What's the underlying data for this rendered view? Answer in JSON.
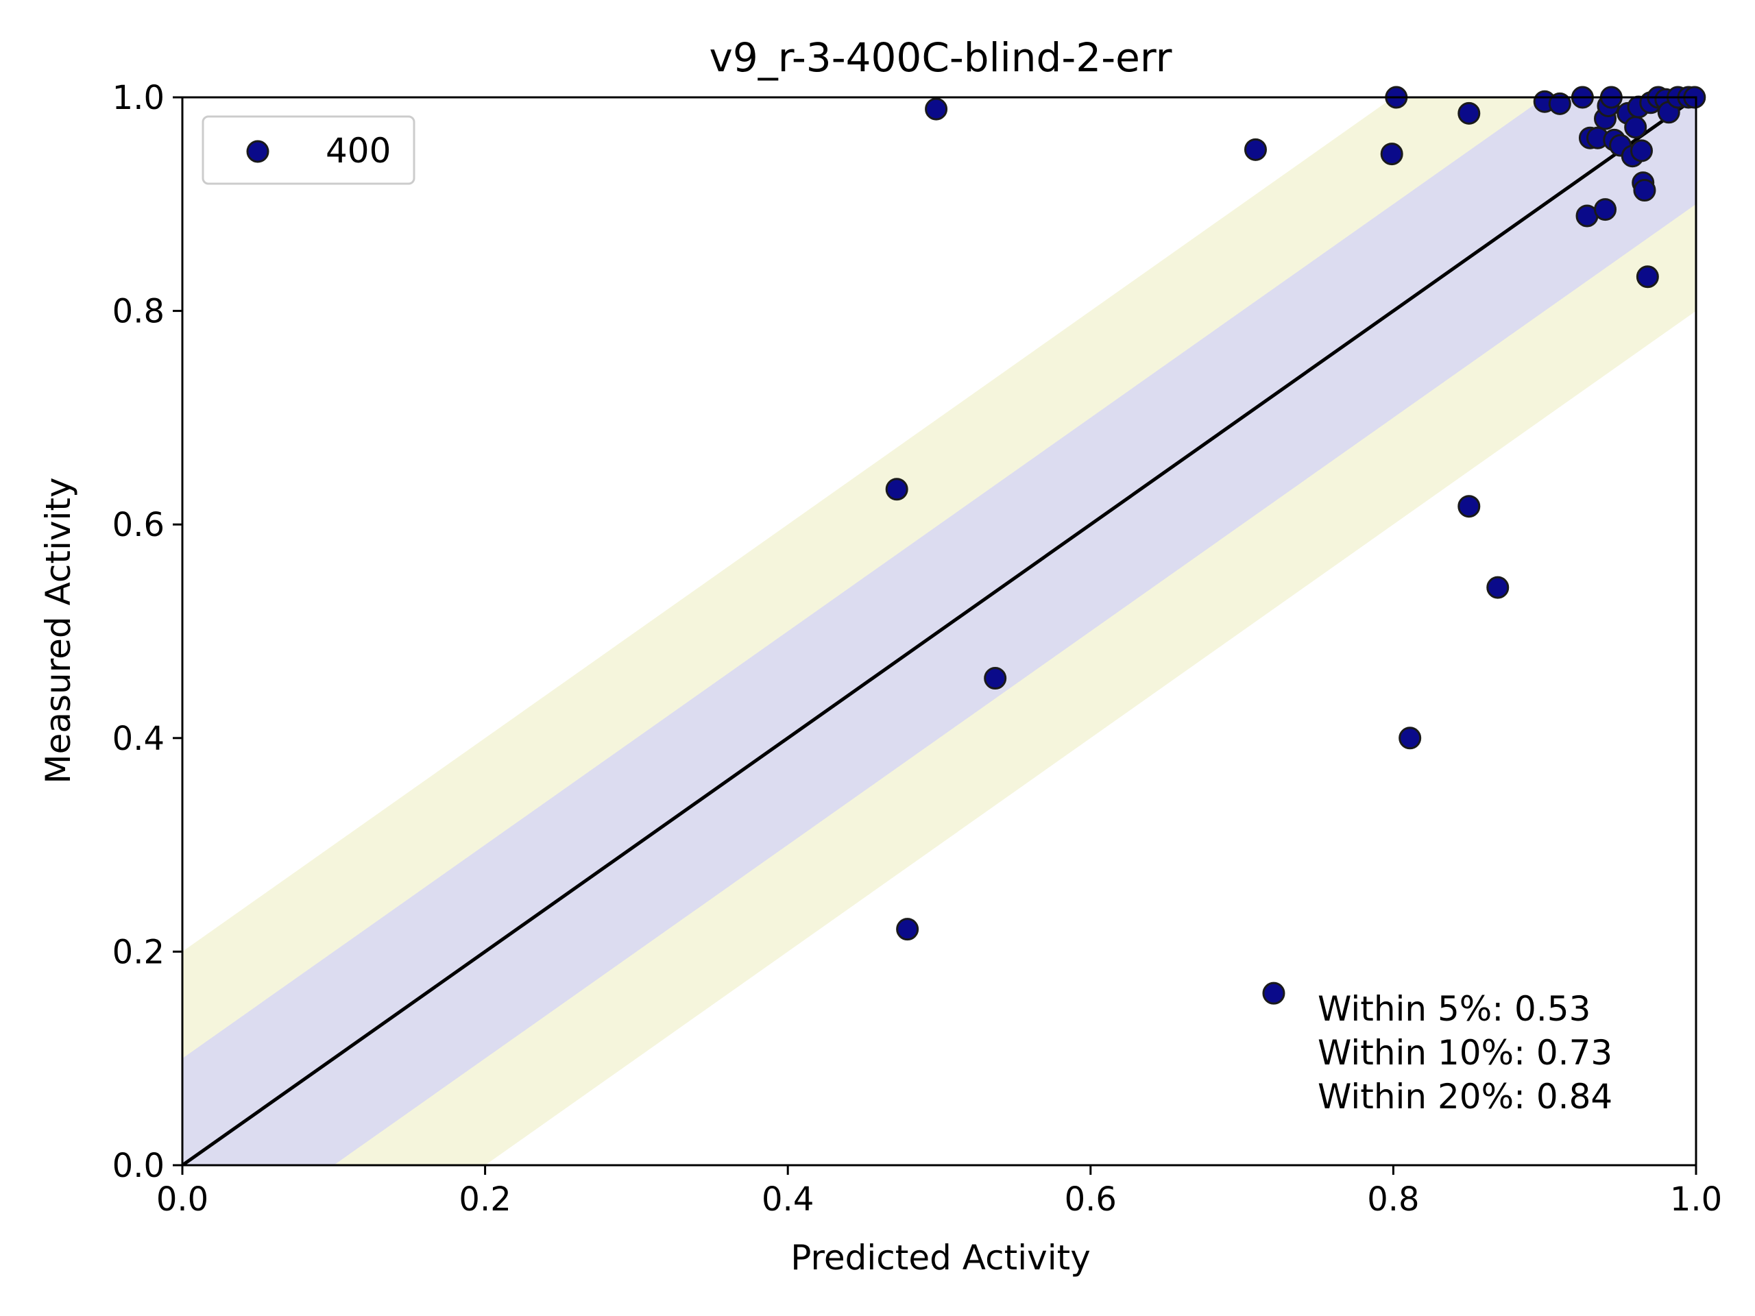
{
  "chart_data": {
    "type": "scatter",
    "title": "v9_r-3-400C-blind-2-err",
    "xlabel": "Predicted Activity",
    "ylabel": "Measured Activity",
    "xlim": [
      0.0,
      1.0
    ],
    "ylim": [
      0.0,
      1.0
    ],
    "grid": false,
    "legend_position": "top-left",
    "x_tick_labels": [
      "0.0",
      "0.2",
      "0.4",
      "0.6",
      "0.8",
      "1.0"
    ],
    "y_tick_labels": [
      "0.0",
      "0.2",
      "0.4",
      "0.6",
      "0.8",
      "1.0"
    ],
    "x_ticks": [
      0.0,
      0.2,
      0.4,
      0.6,
      0.8,
      1.0
    ],
    "y_ticks": [
      0.0,
      0.2,
      0.4,
      0.6,
      0.8,
      1.0
    ],
    "bands": [
      {
        "half_width": 0.2,
        "color": "#f5f5dc"
      },
      {
        "half_width": 0.1,
        "color": "#dcdcf0"
      }
    ],
    "identity_line_color": "#000000",
    "series": [
      {
        "name": "400",
        "color": "#0a0a8a",
        "edge_color": "#1a1a1a",
        "points": [
          [
            0.498,
            0.989
          ],
          [
            0.709,
            0.951
          ],
          [
            0.472,
            0.633
          ],
          [
            0.537,
            0.456
          ],
          [
            0.479,
            0.221
          ],
          [
            0.721,
            0.161
          ],
          [
            0.811,
            0.4
          ],
          [
            0.85,
            0.617
          ],
          [
            0.869,
            0.541
          ],
          [
            0.799,
            0.947
          ],
          [
            0.802,
            1.0
          ],
          [
            0.85,
            0.985
          ],
          [
            0.9,
            0.996
          ],
          [
            0.91,
            0.994
          ],
          [
            0.925,
            1.0
          ],
          [
            0.928,
            0.889
          ],
          [
            0.93,
            0.962
          ],
          [
            0.935,
            0.962
          ],
          [
            0.94,
            0.895
          ],
          [
            0.94,
            0.98
          ],
          [
            0.942,
            0.992
          ],
          [
            0.944,
            1.0
          ],
          [
            0.946,
            0.96
          ],
          [
            0.95,
            0.955
          ],
          [
            0.955,
            0.985
          ],
          [
            0.958,
            0.945
          ],
          [
            0.96,
            0.972
          ],
          [
            0.962,
            0.991
          ],
          [
            0.964,
            0.95
          ],
          [
            0.965,
            0.92
          ],
          [
            0.966,
            0.913
          ],
          [
            0.968,
            0.832
          ],
          [
            0.97,
            0.995
          ],
          [
            0.975,
            1.0
          ],
          [
            0.98,
            0.998
          ],
          [
            0.982,
            0.986
          ],
          [
            0.988,
            1.0
          ],
          [
            0.995,
            1.0
          ],
          [
            0.999,
            1.0
          ]
        ]
      }
    ],
    "annotations": [
      "Within 5%: 0.53",
      "Within 10%: 0.73",
      "Within 20%: 0.84"
    ]
  }
}
